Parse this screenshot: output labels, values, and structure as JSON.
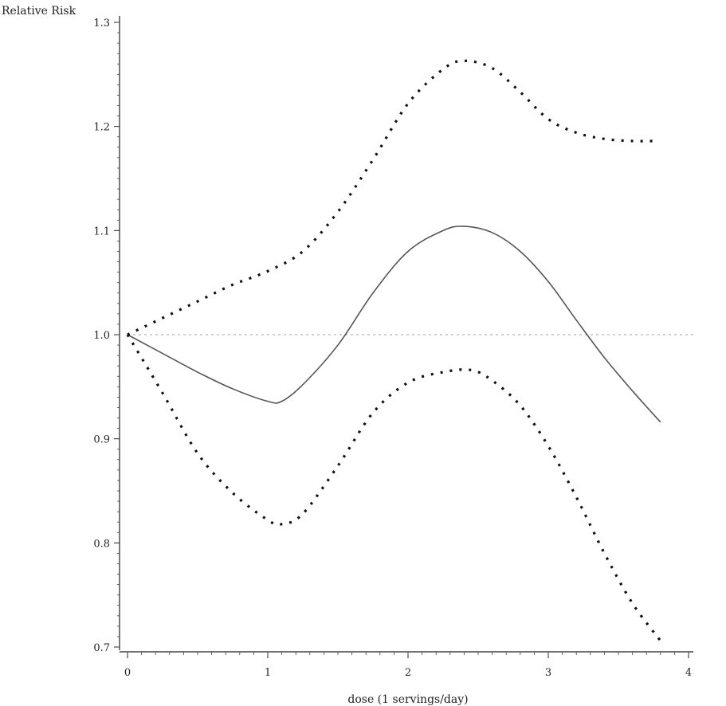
{
  "chart_data": {
    "type": "line",
    "title": "",
    "xlabel": "dose (1 servings/day)",
    "ylabel": "Relative Risk",
    "xlim": [
      0,
      4
    ],
    "ylim": [
      0.7,
      1.3
    ],
    "x_ticks": [
      "0",
      "1",
      "2",
      "3",
      "4"
    ],
    "y_ticks": [
      "0.7",
      "0.8",
      "0.9",
      "1.0",
      "1.1",
      "1.2",
      "1.3"
    ],
    "reference_line": {
      "y": 1.0,
      "color": "#c0c0c0",
      "style": "dotted"
    },
    "grid": false,
    "legend": "none",
    "series": [
      {
        "style": "solid",
        "color": "#555555",
        "x": [
          0,
          0.25,
          0.5,
          0.75,
          1.0,
          1.1,
          1.25,
          1.5,
          1.75,
          2.0,
          2.25,
          2.4,
          2.6,
          2.8,
          3.0,
          3.2,
          3.4,
          3.6,
          3.8
        ],
        "y": [
          1.0,
          0.982,
          0.964,
          0.948,
          0.936,
          0.936,
          0.952,
          0.99,
          1.04,
          1.08,
          1.1,
          1.104,
          1.098,
          1.08,
          1.051,
          1.014,
          0.978,
          0.946,
          0.916
        ]
      },
      {
        "style": "dotted",
        "color": "#111111",
        "x": [
          0,
          0.25,
          0.5,
          0.75,
          1.0,
          1.25,
          1.5,
          1.75,
          2.0,
          2.25,
          2.4,
          2.6,
          2.8,
          3.0,
          3.2,
          3.4,
          3.6,
          3.75
        ],
        "y": [
          1.0,
          1.016,
          1.032,
          1.048,
          1.061,
          1.08,
          1.118,
          1.168,
          1.222,
          1.255,
          1.263,
          1.256,
          1.233,
          1.207,
          1.194,
          1.188,
          1.186,
          1.186
        ]
      },
      {
        "style": "dotted",
        "color": "#111111",
        "x": [
          0,
          0.25,
          0.5,
          0.75,
          1.0,
          1.1,
          1.25,
          1.5,
          1.75,
          2.0,
          2.25,
          2.45,
          2.6,
          2.8,
          3.0,
          3.2,
          3.4,
          3.6,
          3.8
        ],
        "y": [
          1.0,
          0.944,
          0.886,
          0.848,
          0.822,
          0.818,
          0.828,
          0.874,
          0.925,
          0.954,
          0.964,
          0.966,
          0.956,
          0.932,
          0.893,
          0.844,
          0.79,
          0.742,
          0.706
        ]
      }
    ]
  }
}
